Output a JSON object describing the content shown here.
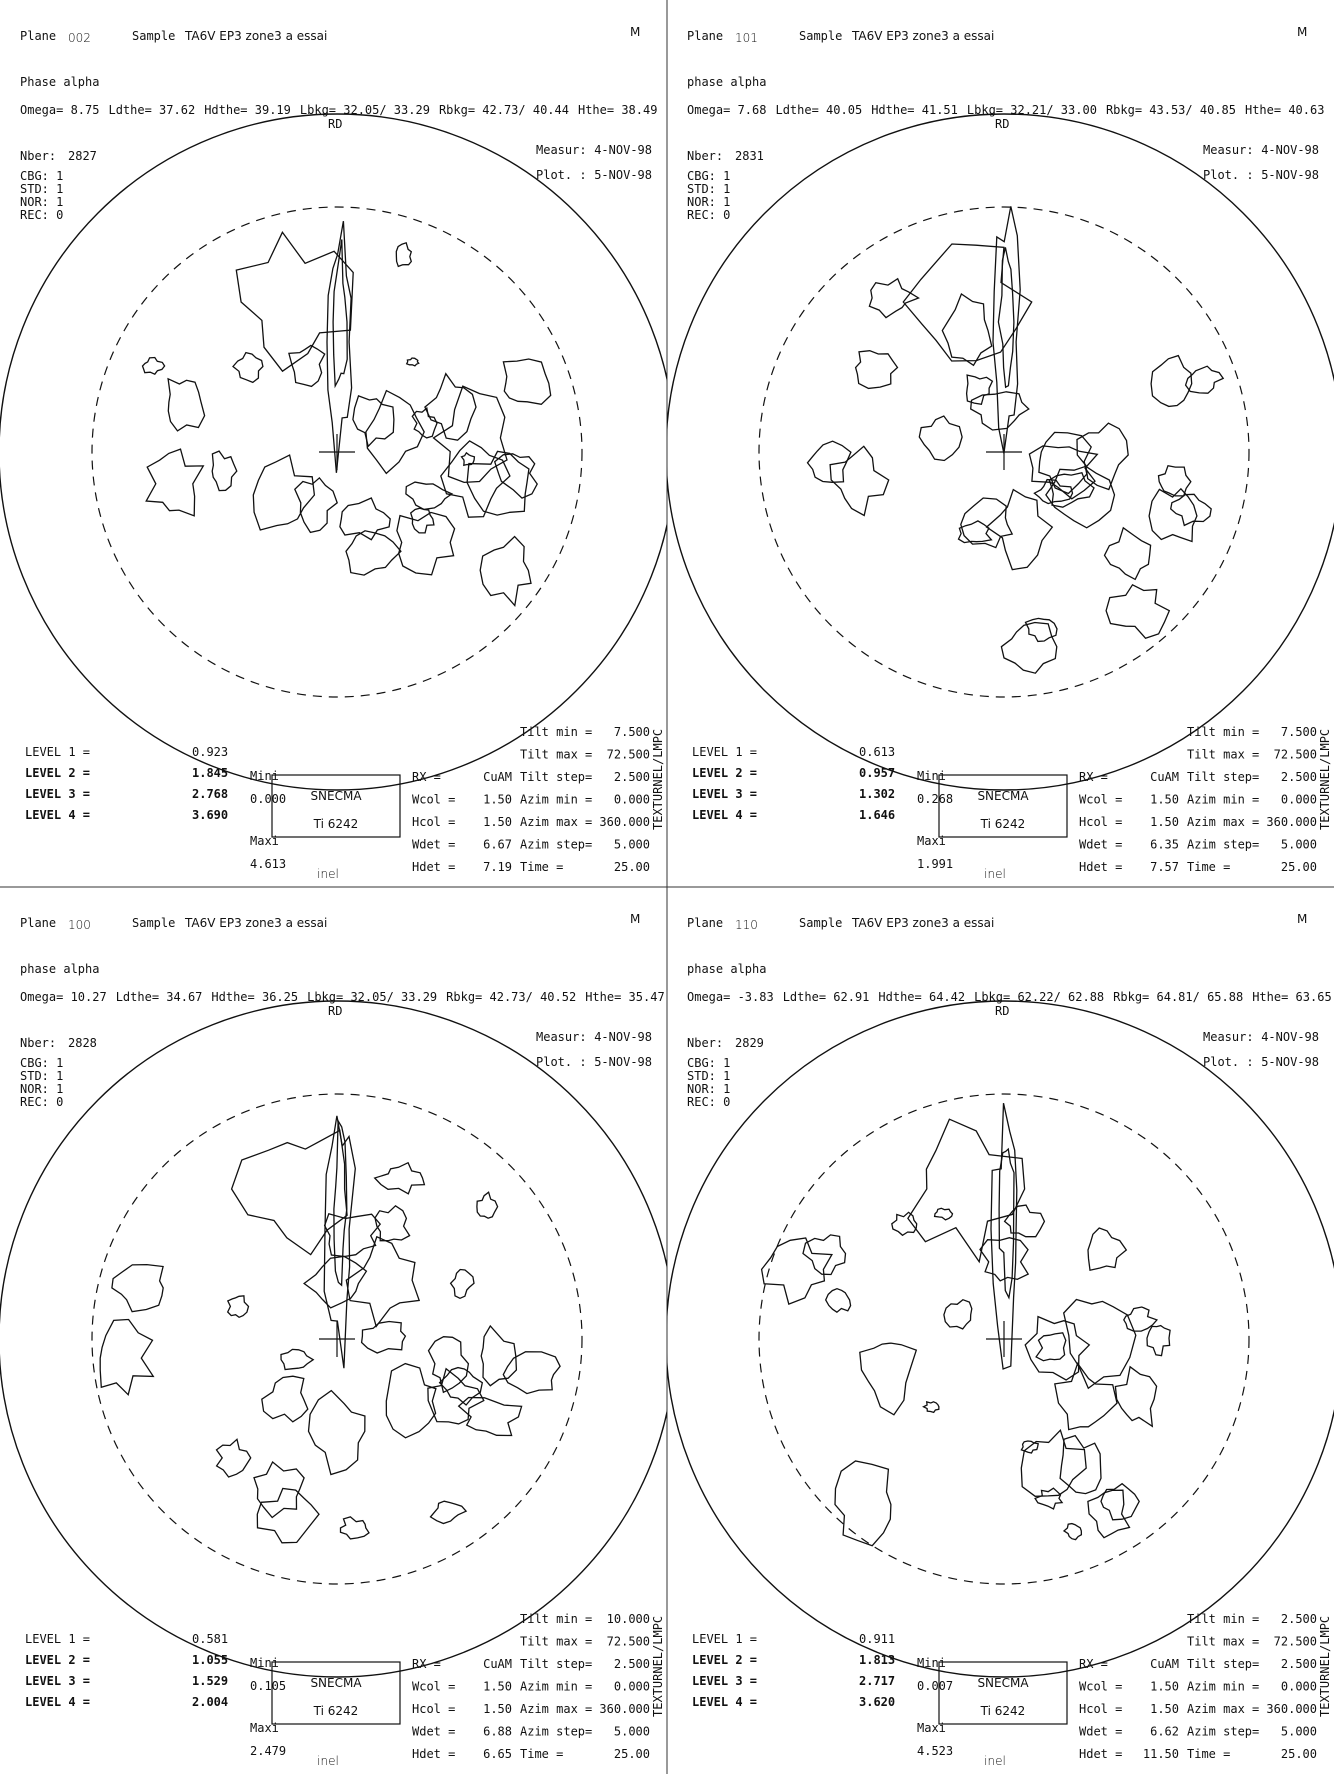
{
  "labels": {
    "plane": "Plane",
    "sample": "Sample",
    "nber": "Nber:",
    "measur": "Measur:",
    "plot": "Plot. :",
    "flags": [
      "CBG: 1",
      "STD: 1",
      "NOR: 1",
      "REC: 0"
    ],
    "levels": [
      "LEVEL 1 =",
      "LEVEL 2 =",
      "LEVEL 3 =",
      "LEVEL 4 ="
    ],
    "mini": "Mini",
    "maxi": "Maxi",
    "box": [
      "SNECMA",
      "Ti 6242"
    ],
    "logo": "inel",
    "left_params": [
      "RX =",
      "Wcol =",
      "Hcol =",
      "Wdet =",
      "Hdet ="
    ],
    "right_params": [
      "Tilt min =",
      "Tilt max =",
      "Tilt step=",
      "Azim min =",
      "Azim max =",
      "Azim step=",
      "Time ="
    ],
    "side": "TEXTURNEL/LMPC",
    "mark": "M",
    "rd": "RD"
  },
  "panels": [
    {
      "plane": "002",
      "sample": "TA6V EP3 zone3 a essai",
      "phase": "Phase alpha",
      "header": [
        "Omega= 8.75",
        "Ldthe= 37.62",
        "Hdthe= 39.19",
        "Lbkg= 32.05/ 33.29",
        "Rbkg= 42.73/ 40.44",
        "Hthe= 38.49"
      ],
      "nber": "2827",
      "measur": "4-NOV-98",
      "plot": "5-NOV-98",
      "levels": [
        "0.923",
        "1.845",
        "2.768",
        "3.690"
      ],
      "mini": "0.000",
      "maxi": "4.613",
      "left_params": [
        "CuAM",
        "1.50",
        "1.50",
        "6.67",
        "7.19"
      ],
      "right_params": [
        "7.500",
        "72.500",
        "2.500",
        "0.000",
        "360.000",
        "5.000",
        "25.00"
      ]
    },
    {
      "plane": "101",
      "sample": "TA6V EP3 zone3 a essai",
      "phase": "phase alpha",
      "header": [
        "Omega= 7.68",
        "Ldthe= 40.05",
        "Hdthe= 41.51",
        "Lbkg= 32.21/ 33.00",
        "Rbkg= 43.53/ 40.85",
        "Hthe= 40.63"
      ],
      "nber": "2831",
      "measur": "4-NOV-98",
      "plot": "5-NOV-98",
      "levels": [
        "0.613",
        "0.957",
        "1.302",
        "1.646"
      ],
      "mini": "0.268",
      "maxi": "1.991",
      "left_params": [
        "CuAM",
        "1.50",
        "1.50",
        "6.35",
        "7.57"
      ],
      "right_params": [
        "7.500",
        "72.500",
        "2.500",
        "0.000",
        "360.000",
        "5.000",
        "25.00"
      ]
    },
    {
      "plane": "100",
      "sample": "TA6V EP3 zone3 a essai",
      "phase": "phase alpha",
      "header": [
        "Omega= 10.27",
        "Ldthe= 34.67",
        "Hdthe= 36.25",
        "Lbkg= 32.05/ 33.29",
        "Rbkg= 42.73/ 40.52",
        "Hthe= 35.47"
      ],
      "nber": "2828",
      "measur": "4-NOV-98",
      "plot": "5-NOV-98",
      "levels": [
        "0.581",
        "1.055",
        "1.529",
        "2.004"
      ],
      "mini": "0.105",
      "maxi": "2.479",
      "left_params": [
        "CuAM",
        "1.50",
        "1.50",
        "6.88",
        "6.65"
      ],
      "right_params": [
        "10.000",
        "72.500",
        "2.500",
        "0.000",
        "360.000",
        "5.000",
        "25.00"
      ]
    },
    {
      "plane": "110",
      "sample": "TA6V EP3 zone3 a essai",
      "phase": "phase alpha",
      "header": [
        "Omega= -3.83",
        "Ldthe= 62.91",
        "Hdthe= 64.42",
        "Lbkg= 62.22/ 62.88",
        "Rbkg= 64.81/ 65.88",
        "Hthe= 63.65"
      ],
      "nber": "2829",
      "measur": "4-NOV-98",
      "plot": "5-NOV-98",
      "levels": [
        "0.911",
        "1.813",
        "2.717",
        "3.620"
      ],
      "mini": "0.007",
      "maxi": "4.523",
      "left_params": [
        "CuAM",
        "1.50",
        "1.50",
        "6.62",
        "11.50"
      ],
      "right_params": [
        "2.500",
        "72.500",
        "2.500",
        "0.000",
        "360.000",
        "5.000",
        "25.00"
      ]
    }
  ]
}
